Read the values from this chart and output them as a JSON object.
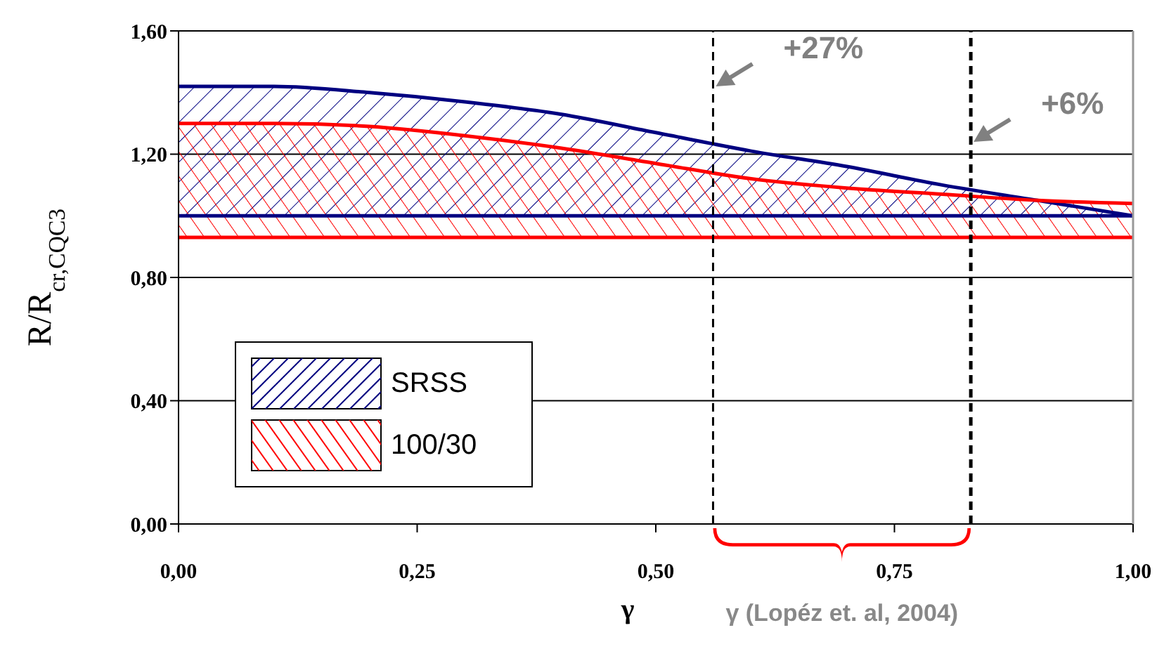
{
  "chart_data": {
    "type": "line",
    "ylabel": "R/R$_{cr,CQC3}$",
    "xlabel": "γ",
    "x": [
      0,
      0.1,
      0.2,
      0.3,
      0.4,
      0.5,
      0.6,
      0.7,
      0.8,
      0.9,
      1.0
    ],
    "series": [
      {
        "name": "SRSS",
        "color": "#000080",
        "values": [
          1.42,
          1.42,
          1.4,
          1.37,
          1.33,
          1.27,
          1.21,
          1.16,
          1.1,
          1.05,
          1.0
        ],
        "lower": [
          1.0,
          1.0,
          1.0,
          1.0,
          1.0,
          1.0,
          1.0,
          1.0,
          1.0,
          1.0,
          1.0
        ],
        "upper": [
          1.42,
          1.42,
          1.4,
          1.37,
          1.33,
          1.27,
          1.21,
          1.16,
          1.1,
          1.05,
          1.0
        ]
      },
      {
        "color": "#000080",
        "values": [
          1.0,
          1.0,
          1.0,
          1.0,
          1.0,
          1.0,
          1.0,
          1.0,
          1.0,
          1.0,
          1.0
        ]
      },
      {
        "name": "100/30",
        "color": "#ff0000",
        "values": [
          1.3,
          1.3,
          1.29,
          1.26,
          1.22,
          1.17,
          1.12,
          1.09,
          1.07,
          1.05,
          1.04
        ],
        "lower": [
          0.93,
          0.93,
          0.93,
          0.93,
          0.93,
          0.93,
          0.93,
          0.93,
          0.93,
          0.93,
          0.93
        ],
        "upper": [
          1.3,
          1.3,
          1.29,
          1.26,
          1.22,
          1.17,
          1.12,
          1.09,
          1.07,
          1.05,
          1.04
        ]
      },
      {
        "color": "#ff0000",
        "values": [
          0.93,
          0.93,
          0.93,
          0.93,
          0.93,
          0.93,
          0.93,
          0.93,
          0.93,
          0.93,
          0.93
        ]
      }
    ],
    "xlim": [
      0,
      1
    ],
    "ylim": [
      0,
      1.6
    ],
    "xticks": [
      {
        "value": 0,
        "label": "0,00"
      },
      {
        "value": 0.25,
        "label": "0,25"
      },
      {
        "value": 0.5,
        "label": "0,50"
      },
      {
        "value": 0.75,
        "label": "0,75"
      },
      {
        "value": 1,
        "label": "1,00"
      }
    ],
    "yticks": [
      {
        "value": 0,
        "label": "0,00"
      },
      {
        "value": 0.4,
        "label": "0,40"
      },
      {
        "value": 0.8,
        "label": "0,80"
      },
      {
        "value": 1.2,
        "label": "1,20"
      },
      {
        "value": 1.6,
        "label": "1,60"
      }
    ],
    "ref_lines": [
      {
        "axis": "x",
        "value": 0.56,
        "color": "#000000",
        "line_style": "dashed"
      },
      {
        "axis": "x",
        "value": 0.83,
        "color": "#000000",
        "line_style": "dashed"
      }
    ],
    "annotations": [
      {
        "text": "+27%",
        "x": 0.56,
        "y": 1.42
      },
      {
        "text": "+6%",
        "x": 0.83,
        "y": 1.24
      },
      "γ (Lopéz et. al, 2004)"
    ],
    "grid": "y",
    "legend": "bottom left",
    "marker": "none",
    "line_style": "solid"
  }
}
